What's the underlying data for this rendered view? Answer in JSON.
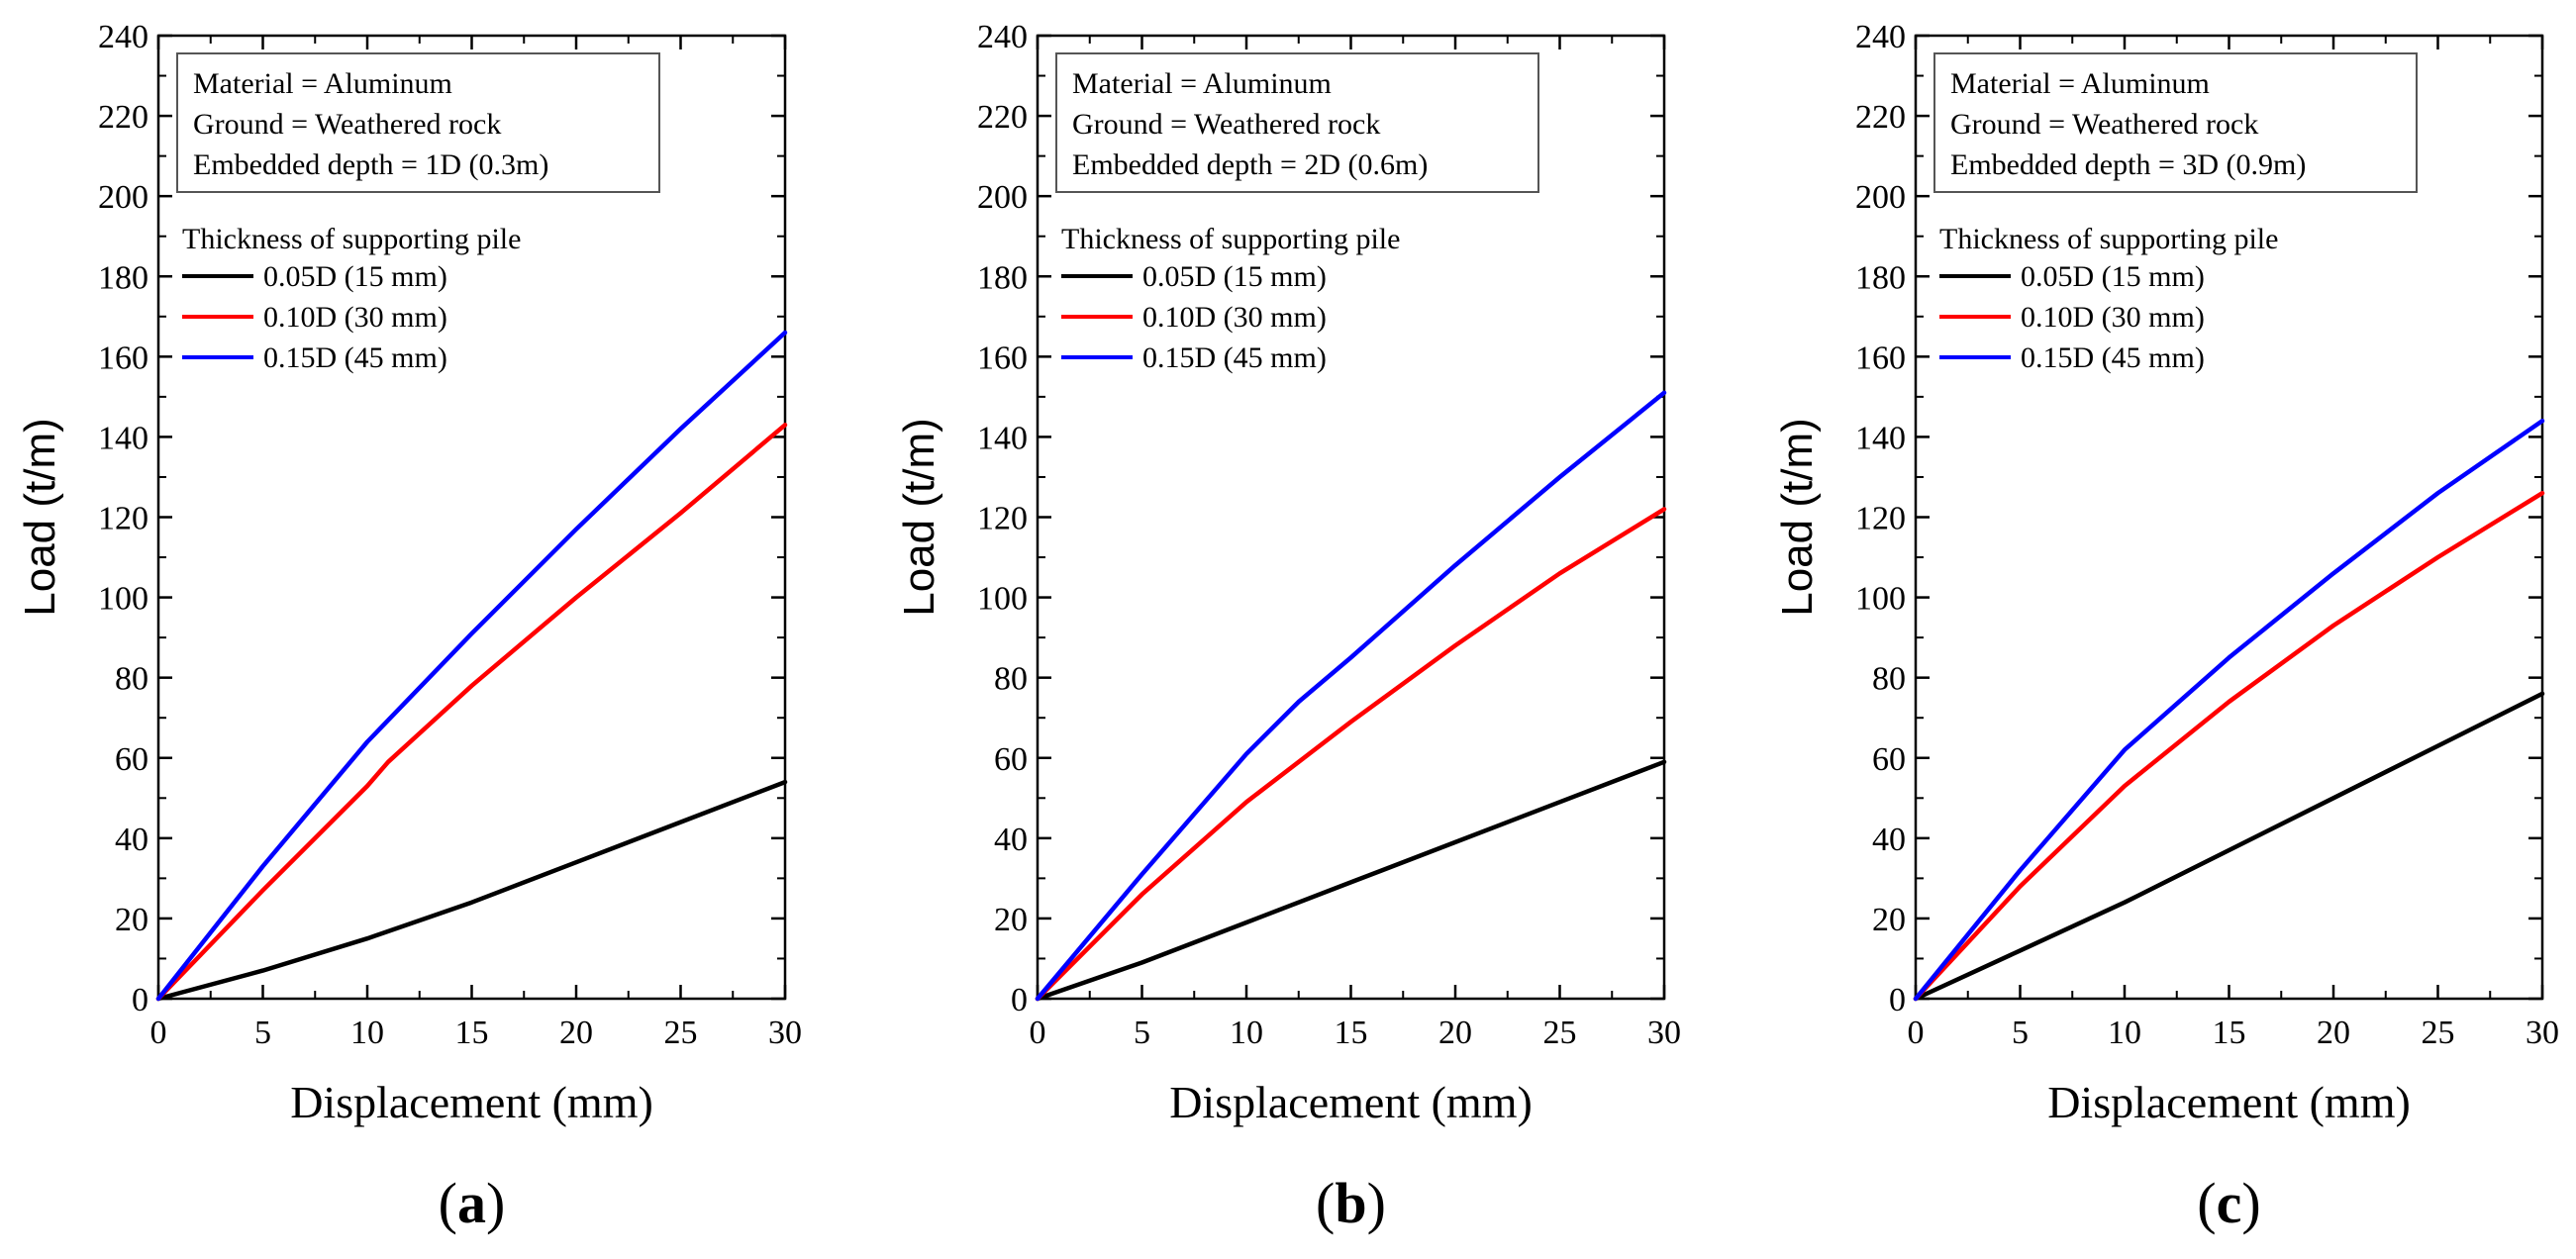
{
  "colors": {
    "series_black": "#000000",
    "series_red": "#ff0000",
    "series_blue": "#0000ff",
    "axis": "#000000",
    "legend_border": "#555555",
    "background": "#ffffff"
  },
  "chart_data": [
    {
      "type": "line",
      "panel_label": "a",
      "xlabel": "Displacement (mm)",
      "ylabel": "Load (t/m)",
      "xlim": [
        0,
        30
      ],
      "ylim": [
        0,
        240
      ],
      "xticks": [
        0,
        5,
        10,
        15,
        20,
        25,
        30
      ],
      "yticks": [
        0,
        20,
        40,
        60,
        80,
        100,
        120,
        140,
        160,
        180,
        200,
        220,
        240
      ],
      "grid": false,
      "info_box": [
        "Material = Aluminum",
        "Ground = Weathered rock",
        "Embedded depth = 1D (0.3m)"
      ],
      "legend_title": "Thickness of supporting pile",
      "legend_position": "top-left",
      "series": [
        {
          "name": "0.05D (15 mm)",
          "color": "#000000",
          "x": [
            0,
            5,
            10,
            15,
            20,
            25,
            30
          ],
          "y": [
            0,
            7,
            15,
            24,
            34,
            44,
            54
          ]
        },
        {
          "name": "0.10D (30 mm)",
          "color": "#ff0000",
          "x": [
            0,
            5,
            10,
            11,
            15,
            20,
            25,
            30
          ],
          "y": [
            0,
            27,
            53,
            59,
            78,
            100,
            121,
            143
          ]
        },
        {
          "name": "0.15D (45 mm)",
          "color": "#0000ff",
          "x": [
            0,
            5,
            10,
            15,
            20,
            25,
            30
          ],
          "y": [
            0,
            33,
            64,
            91,
            117,
            142,
            166
          ]
        }
      ]
    },
    {
      "type": "line",
      "panel_label": "b",
      "xlabel": "Displacement (mm)",
      "ylabel": "Load (t/m)",
      "xlim": [
        0,
        30
      ],
      "ylim": [
        0,
        240
      ],
      "xticks": [
        0,
        5,
        10,
        15,
        20,
        25,
        30
      ],
      "yticks": [
        0,
        20,
        40,
        60,
        80,
        100,
        120,
        140,
        160,
        180,
        200,
        220,
        240
      ],
      "grid": false,
      "info_box": [
        "Material = Aluminum",
        "Ground = Weathered rock",
        "Embedded depth = 2D (0.6m)"
      ],
      "legend_title": "Thickness of supporting pile",
      "legend_position": "top-left",
      "series": [
        {
          "name": "0.05D (15 mm)",
          "color": "#000000",
          "x": [
            0,
            5,
            10,
            15,
            20,
            25,
            30
          ],
          "y": [
            0,
            9,
            19,
            29,
            39,
            49,
            59
          ]
        },
        {
          "name": "0.10D (30 mm)",
          "color": "#ff0000",
          "x": [
            0,
            5,
            10,
            15,
            20,
            25,
            30
          ],
          "y": [
            0,
            26,
            49,
            69,
            88,
            106,
            122
          ]
        },
        {
          "name": "0.15D (45 mm)",
          "color": "#0000ff",
          "x": [
            0,
            5,
            10,
            12.5,
            15,
            20,
            25,
            30
          ],
          "y": [
            0,
            31,
            61,
            74,
            85,
            108,
            130,
            151
          ]
        }
      ]
    },
    {
      "type": "line",
      "panel_label": "c",
      "xlabel": "Displacement (mm)",
      "ylabel": "Load (t/m)",
      "xlim": [
        0,
        30
      ],
      "ylim": [
        0,
        240
      ],
      "xticks": [
        0,
        5,
        10,
        15,
        20,
        25,
        30
      ],
      "yticks": [
        0,
        20,
        40,
        60,
        80,
        100,
        120,
        140,
        160,
        180,
        200,
        220,
        240
      ],
      "grid": false,
      "info_box": [
        "Material = Aluminum",
        "Ground = Weathered rock",
        "Embedded depth = 3D (0.9m)"
      ],
      "legend_title": "Thickness of supporting pile",
      "legend_position": "top-left",
      "series": [
        {
          "name": "0.05D (15 mm)",
          "color": "#000000",
          "x": [
            0,
            5,
            10,
            15,
            20,
            25,
            30
          ],
          "y": [
            0,
            12,
            24,
            37,
            50,
            63,
            76
          ]
        },
        {
          "name": "0.10D (30 mm)",
          "color": "#ff0000",
          "x": [
            0,
            5,
            10,
            15,
            20,
            25,
            30
          ],
          "y": [
            0,
            28,
            53,
            74,
            93,
            110,
            126
          ]
        },
        {
          "name": "0.15D (45 mm)",
          "color": "#0000ff",
          "x": [
            0,
            5,
            10,
            15,
            20,
            25,
            30
          ],
          "y": [
            0,
            32,
            62,
            85,
            106,
            126,
            144
          ]
        }
      ]
    }
  ]
}
